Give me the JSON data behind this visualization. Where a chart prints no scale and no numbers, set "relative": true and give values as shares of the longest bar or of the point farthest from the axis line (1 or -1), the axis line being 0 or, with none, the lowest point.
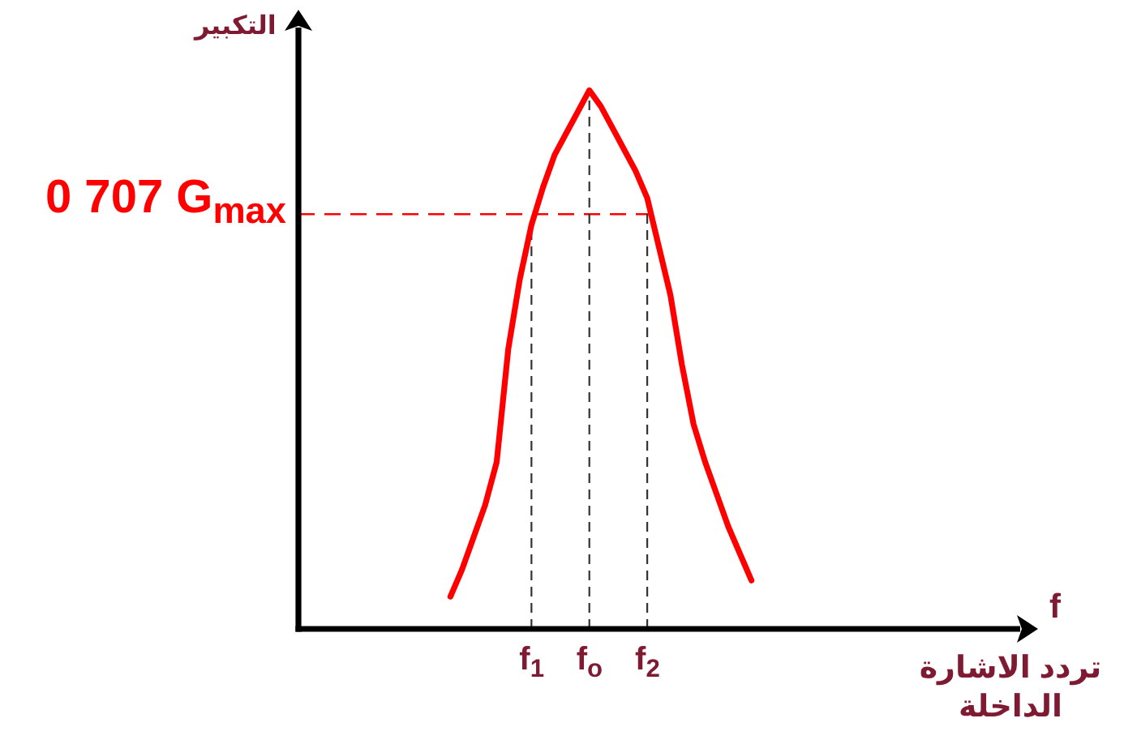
{
  "chart_data": {
    "type": "line",
    "relative": true,
    "annotations": [
      "التكبير",
      "f",
      "تردد الاشارة الداخلة"
    ],
    "categories": [
      null,
      null,
      null,
      null,
      null,
      null,
      null,
      "f$_{1}$",
      null,
      null,
      null,
      null,
      "f$_{o}$",
      null,
      null,
      null,
      null,
      "f$_{2}$",
      null,
      null,
      null,
      null,
      null,
      null,
      null,
      null,
      null
    ],
    "series": [
      {
        "color": "#ff0000",
        "values": [
          0.06,
          0.11,
          0.17,
          0.23,
          0.31,
          0.52,
          0.65,
          0.75,
          0.82,
          0.88,
          0.92,
          0.96,
          1,
          0.97,
          0.93,
          0.89,
          0.85,
          0.8,
          0.71,
          0.62,
          0.49,
          0.38,
          0.31,
          0.25,
          0.19,
          0.14,
          0.09
        ]
      }
    ],
    "ref_lines": [
      {
        "axis": "y",
        "value": 0.77,
        "label": "0 707 G$_{max}$",
        "color": "#ff0000",
        "line_style": "dashed"
      },
      {
        "axis": "x",
        "value": "f$_{1}$",
        "color": "#333333",
        "line_style": "dashed"
      },
      {
        "axis": "x",
        "value": "f$_{o}$",
        "color": "#333333",
        "line_style": "dashed"
      },
      {
        "axis": "x",
        "value": "f$_{2}$",
        "color": "#333333",
        "line_style": "dashed"
      }
    ],
    "line_style": "solid"
  }
}
